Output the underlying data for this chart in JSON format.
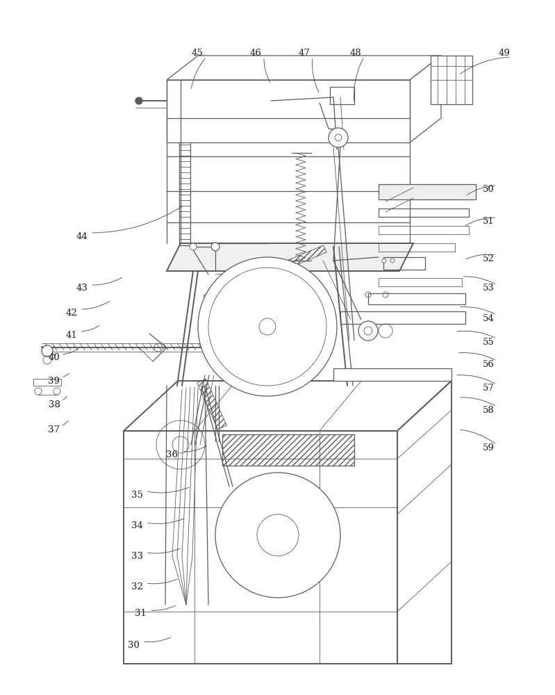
{
  "bg_color": "#ffffff",
  "lc": "#5a5a5a",
  "lc2": "#3a7a3a",
  "lw_thin": 0.6,
  "lw_med": 0.9,
  "lw_thick": 1.4,
  "figsize": [
    7.99,
    10.0
  ],
  "dpi": 100,
  "labels": [
    [
      "30",
      192,
      928
    ],
    [
      "31",
      202,
      883
    ],
    [
      "32",
      197,
      844
    ],
    [
      "33",
      197,
      800
    ],
    [
      "34",
      197,
      757
    ],
    [
      "35",
      197,
      712
    ],
    [
      "36",
      248,
      655
    ],
    [
      "37",
      78,
      618
    ],
    [
      "38",
      78,
      582
    ],
    [
      "39",
      78,
      548
    ],
    [
      "40",
      78,
      515
    ],
    [
      "41",
      103,
      482
    ],
    [
      "42",
      103,
      450
    ],
    [
      "43",
      118,
      415
    ],
    [
      "44",
      118,
      340
    ],
    [
      "45",
      284,
      77
    ],
    [
      "46",
      368,
      77
    ],
    [
      "47",
      438,
      77
    ],
    [
      "48",
      512,
      77
    ],
    [
      "49",
      726,
      77
    ],
    [
      "50",
      703,
      272
    ],
    [
      "51",
      703,
      318
    ],
    [
      "52",
      703,
      372
    ],
    [
      "53",
      703,
      415
    ],
    [
      "54",
      703,
      458
    ],
    [
      "55",
      703,
      492
    ],
    [
      "56",
      703,
      524
    ],
    [
      "57",
      703,
      558
    ],
    [
      "58",
      703,
      590
    ],
    [
      "59",
      703,
      645
    ]
  ],
  "leader_lines": [
    [
      "30",
      205,
      923,
      248,
      916
    ],
    [
      "31",
      215,
      878,
      255,
      870
    ],
    [
      "32",
      210,
      839,
      258,
      832
    ],
    [
      "33",
      210,
      795,
      262,
      788
    ],
    [
      "34",
      210,
      752,
      268,
      745
    ],
    [
      "35",
      210,
      707,
      275,
      700
    ],
    [
      "36",
      262,
      650,
      300,
      640
    ],
    [
      "37",
      88,
      613,
      100,
      603
    ],
    [
      "38",
      88,
      577,
      98,
      568
    ],
    [
      "39",
      88,
      543,
      102,
      535
    ],
    [
      "40",
      88,
      510,
      115,
      500
    ],
    [
      "41",
      115,
      477,
      145,
      467
    ],
    [
      "42",
      115,
      445,
      160,
      432
    ],
    [
      "43",
      130,
      410,
      178,
      398
    ],
    [
      "44",
      130,
      335,
      265,
      295
    ],
    [
      "45",
      297,
      82,
      275,
      130
    ],
    [
      "46",
      380,
      82,
      390,
      120
    ],
    [
      "47",
      450,
      82,
      460,
      135
    ],
    [
      "48",
      524,
      82,
      510,
      148
    ],
    [
      "49",
      736,
      82,
      660,
      108
    ],
    [
      "50",
      715,
      267,
      670,
      282
    ],
    [
      "51",
      715,
      313,
      668,
      326
    ],
    [
      "52",
      715,
      367,
      668,
      374
    ],
    [
      "53",
      715,
      410,
      665,
      398
    ],
    [
      "54",
      715,
      453,
      660,
      442
    ],
    [
      "55",
      715,
      487,
      655,
      477
    ],
    [
      "56",
      715,
      519,
      658,
      508
    ],
    [
      "57",
      715,
      553,
      655,
      540
    ],
    [
      "58",
      715,
      585,
      660,
      572
    ],
    [
      "59",
      715,
      640,
      660,
      618
    ]
  ]
}
